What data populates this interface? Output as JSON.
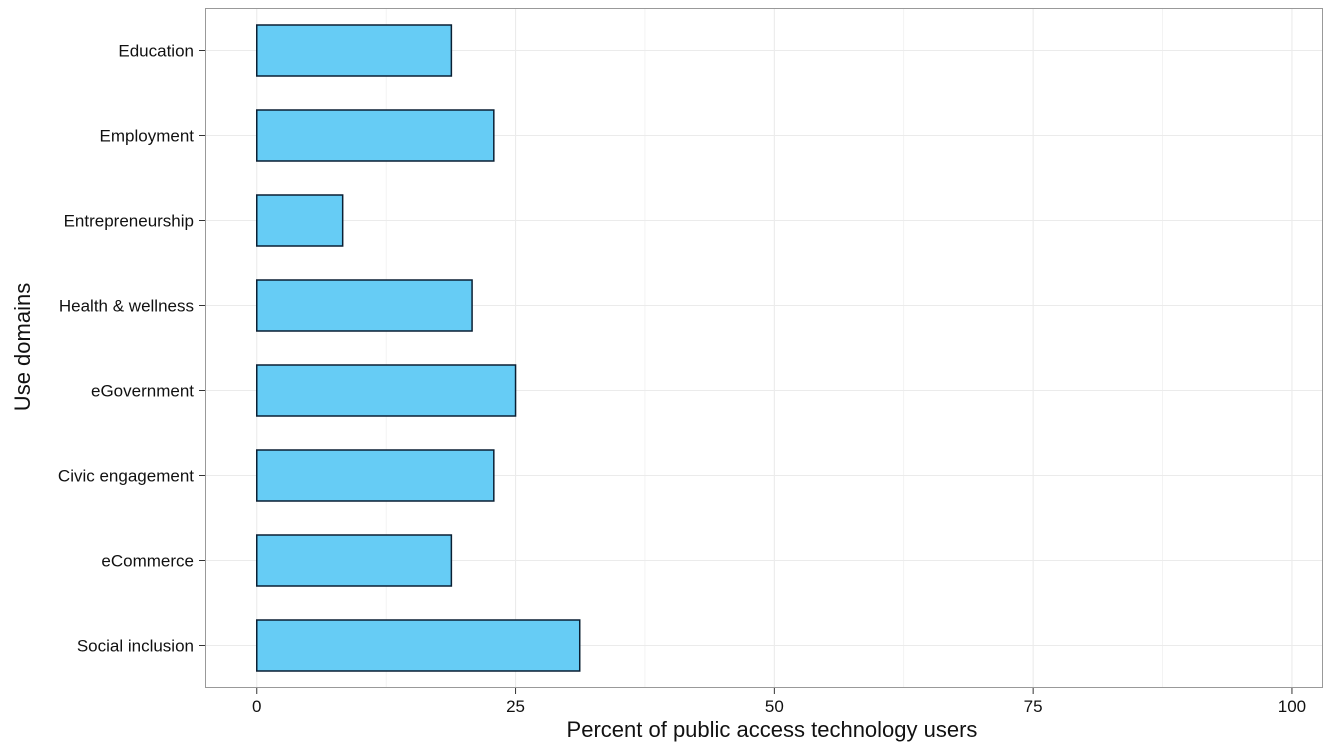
{
  "chart_data": {
    "type": "bar",
    "orientation": "horizontal",
    "categories": [
      "Education",
      "Employment",
      "Entrepreneurship",
      "Health & wellness",
      "eGovernment",
      "Civic engagement",
      "eCommerce",
      "Social inclusion"
    ],
    "values": [
      18.8,
      22.9,
      8.3,
      20.8,
      25.0,
      22.9,
      18.8,
      31.2
    ],
    "xlabel": "Percent of public access technology users",
    "ylabel": "Use domains",
    "xlim": [
      -5,
      103
    ],
    "xticks": [
      "0",
      "25",
      "50",
      "75",
      "100"
    ],
    "grid": true,
    "legend": "none",
    "colors": {
      "bar_fill": "#66ccf5",
      "bar_stroke": "#0a1f33",
      "grid": "#ebebeb",
      "panel_border": "#999999"
    }
  }
}
